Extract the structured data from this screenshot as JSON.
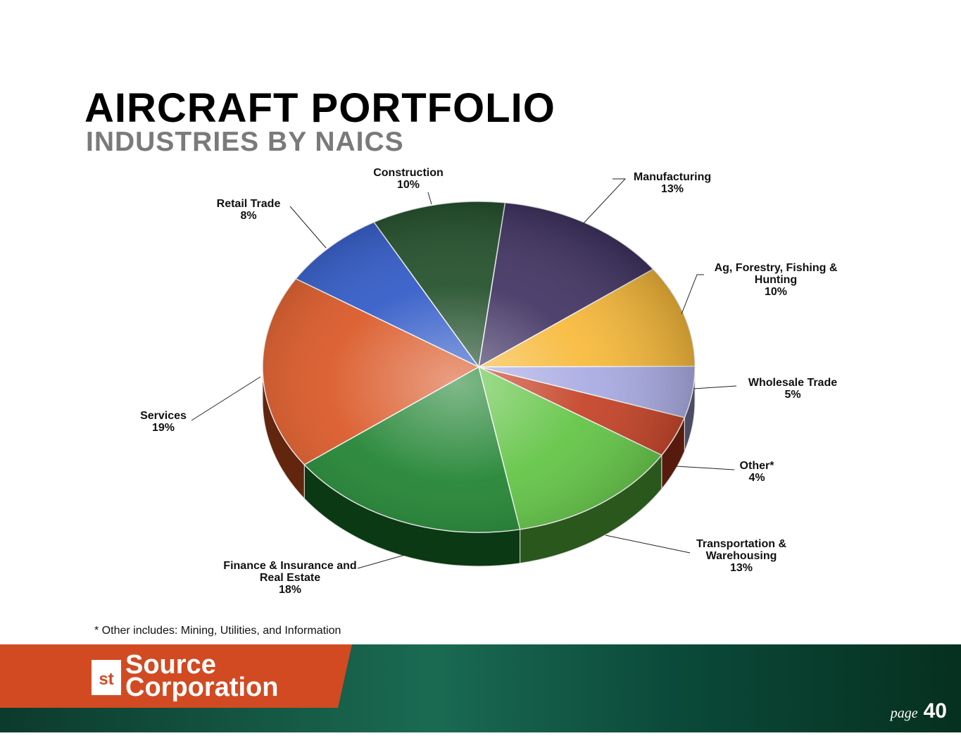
{
  "chart_data": {
    "type": "pie",
    "title": "AIRCRAFT PORTFOLIO",
    "subtitle": "INDUSTRIES BY NAICS",
    "categories": [
      "Manufacturing",
      "Ag, Forestry, Fishing & Hunting",
      "Wholesale Trade",
      "Other*",
      "Transportation & Warehousing",
      "Finance & Insurance and Real Estate",
      "Services",
      "Retail Trade",
      "Construction"
    ],
    "values": [
      13,
      10,
      5,
      4,
      13,
      18,
      19,
      8,
      10
    ],
    "value_labels": [
      "13%",
      "10%",
      "5%",
      "4%",
      "13%",
      "18%",
      "19%",
      "8%",
      "10%"
    ],
    "colors": [
      "#3b2d5e",
      "#f7b733",
      "#a6a8e2",
      "#c23b1e",
      "#5cc23e",
      "#187f2a",
      "#d9521f",
      "#2a55c6",
      "#1b4a24"
    ],
    "footnote": "* Other includes: Mining, Utilities, and Information"
  },
  "footer": {
    "logo_mark": "st",
    "logo_top": "Source",
    "logo_bottom": "Corporation",
    "page_label": "page",
    "page_number": "40"
  }
}
